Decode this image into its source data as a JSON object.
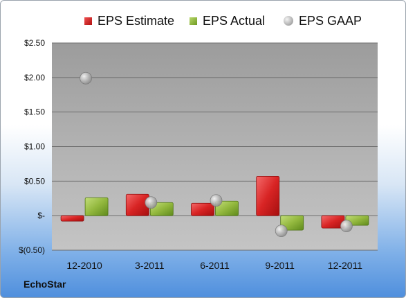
{
  "company": "EchoStar",
  "chart_data": {
    "type": "bar",
    "title": "",
    "xlabel": "",
    "ylabel": "",
    "categories": [
      "12-2010",
      "3-2011",
      "6-2011",
      "9-2011",
      "12-2011"
    ],
    "series": [
      {
        "name": "EPS Estimate",
        "kind": "bar",
        "color": "#cc2020",
        "values": [
          -0.08,
          0.31,
          0.18,
          0.57,
          -0.18
        ]
      },
      {
        "name": "EPS Actual",
        "kind": "bar",
        "color": "#8db33a",
        "values": [
          0.26,
          0.19,
          0.21,
          -0.21,
          -0.14
        ]
      },
      {
        "name": "EPS GAAP",
        "kind": "scatter",
        "color": "#b0b0b0",
        "values": [
          1.99,
          0.19,
          0.22,
          -0.22,
          -0.15
        ]
      }
    ],
    "ylim": [
      -0.5,
      2.5
    ],
    "yticks": [
      2.5,
      2.0,
      1.5,
      1.0,
      0.5,
      0,
      -0.5
    ],
    "ytick_labels": [
      "$2.50",
      "$2.00",
      "$1.50",
      "$1.00",
      "$0.50",
      "$-",
      "$(0.50)"
    ],
    "grid": true,
    "legend": "top"
  }
}
